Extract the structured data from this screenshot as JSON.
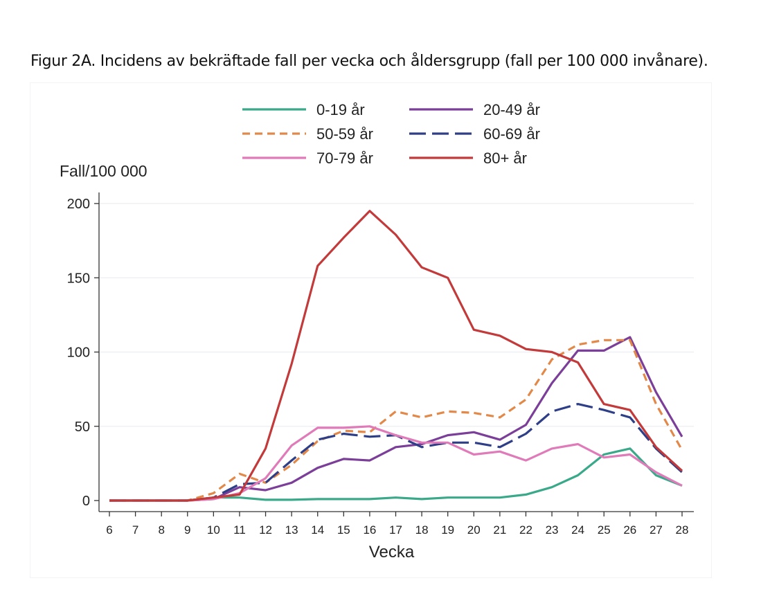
{
  "figure": {
    "caption": "Figur 2A. Incidens av bekräftade fall per vecka och åldersgrupp (fall per 100 000 invånare)."
  },
  "colors": {
    "background": "#ffffff",
    "grid": "#eef0f4",
    "axis": "#333333"
  },
  "chart_data": {
    "type": "line",
    "title": "Figur 2A. Incidens av bekräftade fall per vecka och åldersgrupp (fall per 100 000 invånare).",
    "xlabel": "Vecka",
    "ylabel": "Fall/100 000",
    "x": [
      6,
      7,
      8,
      9,
      10,
      11,
      12,
      13,
      14,
      15,
      16,
      17,
      18,
      19,
      20,
      21,
      22,
      23,
      24,
      25,
      26,
      27,
      28
    ],
    "x_ticks": [
      "6",
      "7",
      "8",
      "9",
      "10",
      "11",
      "12",
      "13",
      "14",
      "15",
      "16",
      "17",
      "18",
      "19",
      "20",
      "21",
      "22",
      "23",
      "24",
      "25",
      "26",
      "27",
      "28"
    ],
    "ylim": [
      0,
      200
    ],
    "y_ticks": [
      "0",
      "50",
      "100",
      "150",
      "200"
    ],
    "grid": "horizontal",
    "legend_position": "top",
    "series": [
      {
        "name": "0-19 år",
        "color": "#3aa98a",
        "dash": "solid",
        "values": [
          0,
          0,
          0,
          0,
          2,
          2,
          0.5,
          0.5,
          1,
          1,
          1,
          2,
          1,
          2,
          2,
          2,
          4,
          9,
          17,
          31,
          35,
          17,
          10
        ]
      },
      {
        "name": "20-49 år",
        "color": "#7b3f99",
        "dash": "solid",
        "values": [
          0,
          0,
          0,
          0,
          1,
          9,
          7,
          12,
          22,
          28,
          27,
          36,
          38,
          44,
          46,
          41,
          51,
          79,
          101,
          101,
          110,
          73,
          43
        ]
      },
      {
        "name": "50-59 år",
        "color": "#e2894a",
        "dash": "short",
        "values": [
          0,
          0,
          0,
          0,
          5,
          18,
          12,
          24,
          40,
          47,
          46,
          60,
          56,
          60,
          59,
          56,
          68,
          95,
          105,
          108,
          108,
          65,
          34
        ]
      },
      {
        "name": "60-69 år",
        "color": "#2e3f88",
        "dash": "long",
        "values": [
          0,
          0,
          0,
          0,
          2,
          11,
          12,
          27,
          41,
          45,
          43,
          44,
          36,
          39,
          39,
          36,
          45,
          60,
          65,
          61,
          56,
          35,
          19
        ]
      },
      {
        "name": "70-79 år",
        "color": "#e07bb9",
        "dash": "solid",
        "values": [
          0,
          0,
          0,
          0,
          1,
          5,
          15,
          37,
          49,
          49,
          50,
          44,
          39,
          39,
          31,
          33,
          27,
          35,
          38,
          29,
          31,
          19,
          10
        ]
      },
      {
        "name": "80+ år",
        "color": "#c23a3a",
        "dash": "solid",
        "values": [
          0,
          0,
          0,
          0,
          2,
          4,
          35,
          92,
          158,
          177,
          195,
          179,
          157,
          150,
          115,
          111,
          102,
          100,
          93,
          65,
          61,
          36,
          20
        ]
      }
    ]
  }
}
